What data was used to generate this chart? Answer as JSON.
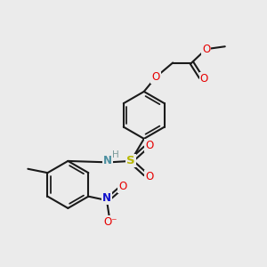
{
  "bg_color": "#ebebeb",
  "bond_color": "#1a1a1a",
  "bond_width": 1.5,
  "S_color": "#b8b800",
  "N_color": "#4a8fa0",
  "Nno_color": "#1010cc",
  "O_color": "#e60000",
  "H_color": "#7a9a9a",
  "figsize": [
    3.0,
    3.0
  ],
  "dpi": 100,
  "xlim": [
    0,
    10
  ],
  "ylim": [
    0,
    10
  ]
}
